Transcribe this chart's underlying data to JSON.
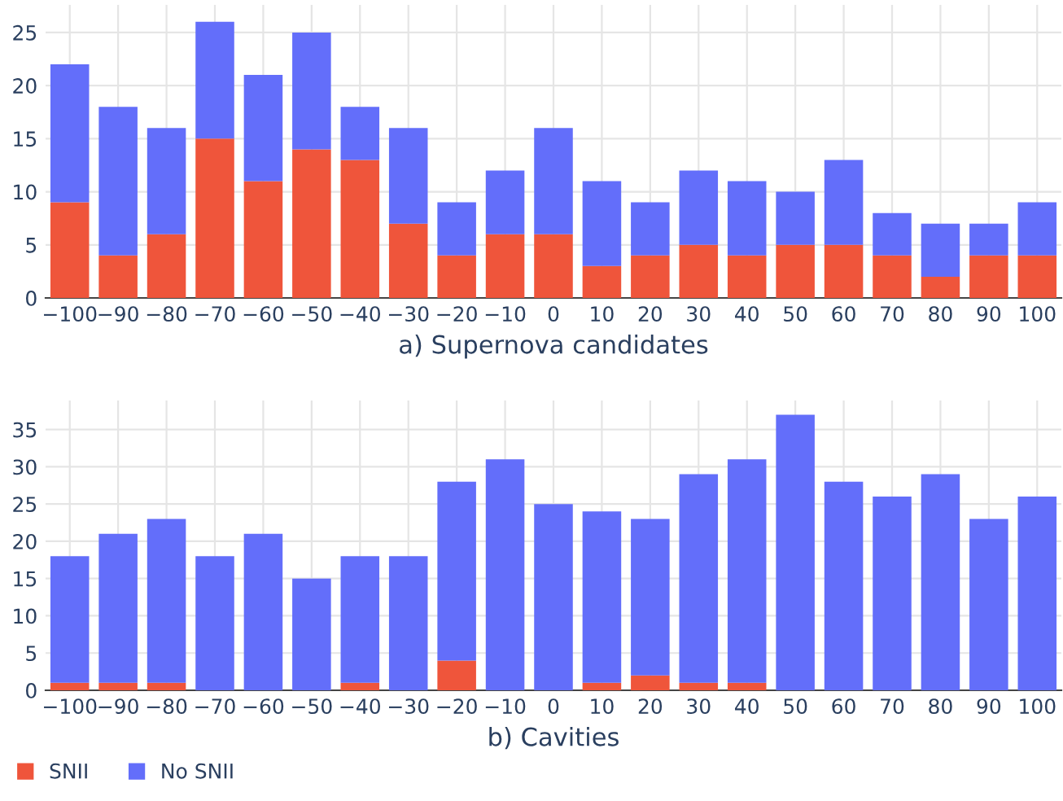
{
  "chart_data": [
    {
      "type": "bar",
      "stacked": true,
      "xlabel": "a) Supernova candidates",
      "x": [
        -100,
        -90,
        -80,
        -70,
        -60,
        -50,
        -40,
        -30,
        -20,
        -10,
        0,
        10,
        20,
        30,
        40,
        50,
        60,
        70,
        80,
        90,
        100
      ],
      "series": [
        {
          "name": "SNII",
          "color": "#ef553b",
          "values": [
            9,
            4,
            6,
            15,
            11,
            14,
            13,
            7,
            4,
            6,
            6,
            3,
            4,
            5,
            4,
            5,
            5,
            4,
            2,
            4,
            4
          ]
        },
        {
          "name": "No SNII",
          "color": "#636efa",
          "values": [
            13,
            14,
            10,
            11,
            10,
            11,
            5,
            9,
            5,
            6,
            10,
            8,
            5,
            7,
            7,
            5,
            8,
            4,
            5,
            3,
            5
          ]
        }
      ],
      "xlim": [
        -105,
        105
      ],
      "xticks": [
        {
          "value": -100,
          "label": "−100"
        },
        {
          "value": -90,
          "label": "−90"
        },
        {
          "value": -80,
          "label": "−80"
        },
        {
          "value": -70,
          "label": "−70"
        },
        {
          "value": -60,
          "label": "−60"
        },
        {
          "value": -50,
          "label": "−50"
        },
        {
          "value": -40,
          "label": "−40"
        },
        {
          "value": -30,
          "label": "−30"
        },
        {
          "value": -20,
          "label": "−20"
        },
        {
          "value": -10,
          "label": "−10"
        },
        0,
        10,
        20,
        30,
        40,
        50,
        60,
        70,
        80,
        90,
        100
      ],
      "ylim": [
        0,
        27.6
      ],
      "yticks": [
        0,
        5,
        10,
        15,
        20,
        25
      ],
      "grid": true,
      "legend": "bottom left"
    },
    {
      "type": "bar",
      "stacked": true,
      "xlabel": "b) Cavities",
      "x": [
        -100,
        -90,
        -80,
        -70,
        -60,
        -50,
        -40,
        -30,
        -20,
        -10,
        0,
        10,
        20,
        30,
        40,
        50,
        60,
        70,
        80,
        90,
        100
      ],
      "series": [
        {
          "color": "#ef553b",
          "values": [
            1,
            1,
            1,
            0,
            0,
            0,
            1,
            0,
            4,
            0,
            0,
            1,
            2,
            1,
            1,
            0,
            0,
            0,
            0,
            0,
            0
          ]
        },
        {
          "color": "#636efa",
          "values": [
            17,
            20,
            22,
            18,
            21,
            15,
            17,
            18,
            24,
            31,
            25,
            23,
            21,
            28,
            30,
            37,
            28,
            26,
            29,
            23,
            26
          ]
        }
      ],
      "xlim": [
        -105,
        105
      ],
      "xticks": [
        {
          "value": -100,
          "label": "−100"
        },
        {
          "value": -90,
          "label": "−90"
        },
        {
          "value": -80,
          "label": "−80"
        },
        {
          "value": -70,
          "label": "−70"
        },
        {
          "value": -60,
          "label": "−60"
        },
        {
          "value": -50,
          "label": "−50"
        },
        {
          "value": -40,
          "label": "−40"
        },
        {
          "value": -30,
          "label": "−30"
        },
        {
          "value": -20,
          "label": "−20"
        },
        {
          "value": -10,
          "label": "−10"
        },
        0,
        10,
        20,
        30,
        40,
        50,
        60,
        70,
        80,
        90,
        100
      ],
      "ylim": [
        0,
        38.9
      ],
      "yticks": [
        0,
        5,
        10,
        15,
        20,
        25,
        30,
        35
      ],
      "grid": true
    }
  ]
}
